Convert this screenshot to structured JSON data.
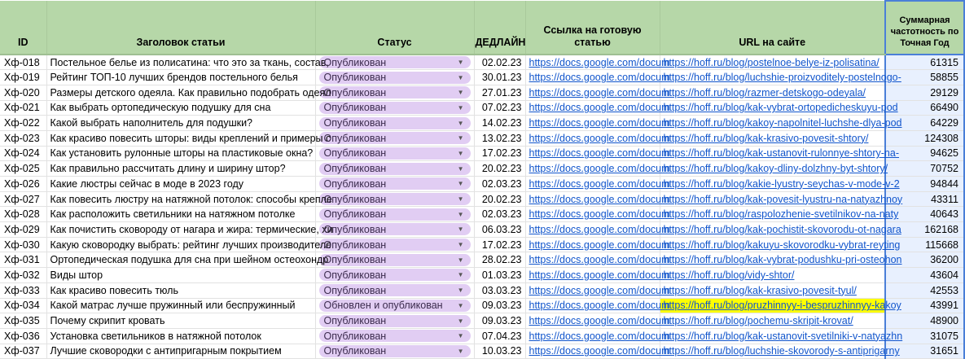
{
  "headers": {
    "id": "ID",
    "title": "Заголовок статьи",
    "status": "Статус",
    "deadline": "ДЕДЛАЙН",
    "link": "Ссылка на готовую статью",
    "url": "URL на сайте",
    "freq": "Суммарная частотность по Точная Год"
  },
  "colors": {
    "header_bg": "#b6d7a8",
    "chip_bg": "#e1cdf3",
    "link": "#1155cc",
    "highlight": "#ffff00",
    "selected_col": "#e8f0fe"
  },
  "rows": [
    {
      "id": "Хф-018",
      "title": "Постельное белье из полисатина: что это за ткань, состав,",
      "status": "Опубликован",
      "deadline": "02.02.23",
      "link": "https://docs.google.com/docum",
      "url": "https://hoff.ru/blog/postelnoe-belye-iz-polisatina/",
      "freq": "61315"
    },
    {
      "id": "Хф-019",
      "title": "Рейтинг ТОП-10 лучших брендов постельного белья",
      "status": "Опубликован",
      "deadline": "30.01.23",
      "link": "https://docs.google.com/docum",
      "url": "https://hoff.ru/blog/luchshie-proizvoditely-postelnogo-",
      "freq": "58855"
    },
    {
      "id": "Хф-020",
      "title": "Размеры детского одеяла. Как правильно подобрать одеял",
      "status": "Опубликован",
      "deadline": "27.01.23",
      "link": "https://docs.google.com/docum",
      "url": "https://hoff.ru/blog/razmer-detskogo-odeyala/",
      "freq": "29129"
    },
    {
      "id": "Хф-021",
      "title": "Как выбрать ортопедическую подушку для сна",
      "status": "Опубликован",
      "deadline": "07.02.23",
      "link": "https://docs.google.com/docum",
      "url": "https://hoff.ru/blog/kak-vybrat-ortopedicheskuyu-pod",
      "freq": "66490"
    },
    {
      "id": "Хф-022",
      "title": "Какой выбрать наполнитель для подушки?",
      "status": "Опубликован",
      "deadline": "14.02.23",
      "link": "https://docs.google.com/docum",
      "url": "https://hoff.ru/blog/kakoy-napolnitel-luchshe-dlya-pod",
      "freq": "64229"
    },
    {
      "id": "Хф-023",
      "title": "Как красиво повесить шторы: виды креплений и примеры с",
      "status": "Опубликован",
      "deadline": "13.02.23",
      "link": "https://docs.google.com/docum",
      "url": "https://hoff.ru/blog/kak-krasivo-povesit-shtory/",
      "freq": "124308"
    },
    {
      "id": "Хф-024",
      "title": "Как установить рулонные шторы на пластиковые окна?",
      "status": "Опубликован",
      "deadline": "17.02.23",
      "link": "https://docs.google.com/docum",
      "url": "https://hoff.ru/blog/kak-ustanovit-rulonnye-shtory-na-",
      "freq": "94625"
    },
    {
      "id": "Хф-025",
      "title": "Как правильно рассчитать длину и ширину штор?",
      "status": "Опубликован",
      "deadline": "20.02.23",
      "link": "https://docs.google.com/docum",
      "url": "https://hoff.ru/blog/kakoy-dliny-dolzhny-byt-shtory/",
      "freq": "70752"
    },
    {
      "id": "Хф-026",
      "title": "Какие люстры сейчас в моде в 2023 году",
      "status": "Опубликован",
      "deadline": "02.03.23",
      "link": "https://docs.google.com/docum",
      "url": "https://hoff.ru/blog/kakie-lyustry-seychas-v-mode-v-2",
      "freq": "94844"
    },
    {
      "id": "Хф-027",
      "title": "Как повесить люстру на натяжной потолок: способы крепле",
      "status": "Опубликован",
      "deadline": "20.02.23",
      "link": "https://docs.google.com/docum",
      "url": "https://hoff.ru/blog/kak-povesit-lyustru-na-natyazhnoy",
      "freq": "43311"
    },
    {
      "id": "Хф-028",
      "title": "Как расположить светильники на натяжном потолке",
      "status": "Опубликован",
      "deadline": "02.03.23",
      "link": "https://docs.google.com/docum",
      "url": "https://hoff.ru/blog/raspolozhenie-svetilnikov-na-naty",
      "freq": "40643"
    },
    {
      "id": "Хф-029",
      "title": "Как почистить сковороду от нагара и жира: термические, хи",
      "status": "Опубликован",
      "deadline": "06.03.23",
      "link": "https://docs.google.com/docum",
      "url": "https://hoff.ru/blog/kak-pochistit-skovorodu-ot-nagara",
      "freq": "162168"
    },
    {
      "id": "Хф-030",
      "title": "Какую сковородку выбрать: рейтинг лучших производителе",
      "status": "Опубликован",
      "deadline": "17.02.23",
      "link": "https://docs.google.com/docum",
      "url": "https://hoff.ru/blog/kakuyu-skovorodku-vybrat-reyting",
      "freq": "115668"
    },
    {
      "id": "Хф-031",
      "title": "Ортопедическая подушка для сна при шейном остеохондр",
      "status": "Опубликован",
      "deadline": "28.02.23",
      "link": "https://docs.google.com/docum",
      "url": "https://hoff.ru/blog/kak-vybrat-podushku-pri-osteohon",
      "freq": "36200"
    },
    {
      "id": "Хф-032",
      "title": "Виды штор",
      "status": "Опубликован",
      "deadline": "01.03.23",
      "link": "https://docs.google.com/docum",
      "url": "https://hoff.ru/blog/vidy-shtor/",
      "freq": "43604"
    },
    {
      "id": "Хф-033",
      "title": "Как красиво повесить тюль",
      "status": "Опубликован",
      "deadline": "03.03.23",
      "link": "https://docs.google.com/docum",
      "url": "https://hoff.ru/blog/kak-krasivo-povesit-tyul/",
      "freq": "42553"
    },
    {
      "id": "Хф-034",
      "title": "Какой матрас лучше пружинный или беспружинный",
      "status": "Обновлен и опубликован",
      "deadline": "09.03.23",
      "link": "https://docs.google.com/docum",
      "url": "https://hoff.ru/blog/pruzhinnyy-i-bespruzhinnyy-kakoy",
      "freq": "43991",
      "highlight": true
    },
    {
      "id": "Хф-035",
      "title": "Почему скрипит кровать",
      "status": "Опубликован",
      "deadline": "09.03.23",
      "link": "https://docs.google.com/docum",
      "url": "https://hoff.ru/blog/pochemu-skripit-krovat/",
      "freq": "48900"
    },
    {
      "id": "Хф-036",
      "title": "Установка светильников в натяжной потолок",
      "status": "Опубликован",
      "deadline": "07.04.23",
      "link": "https://docs.google.com/docum",
      "url": "https://hoff.ru/blog/kak-ustanovit-svetilniki-v-natyazhn",
      "freq": "31075"
    },
    {
      "id": "Хф-037",
      "title": "Лучшие сковородки с антипригарным покрытием",
      "status": "Опубликован",
      "deadline": "10.03.23",
      "link": "https://docs.google.com/docum",
      "url": "https://hoff.ru/blog/luchshie-skovorody-s-antiprigarny",
      "freq": "31651"
    }
  ]
}
